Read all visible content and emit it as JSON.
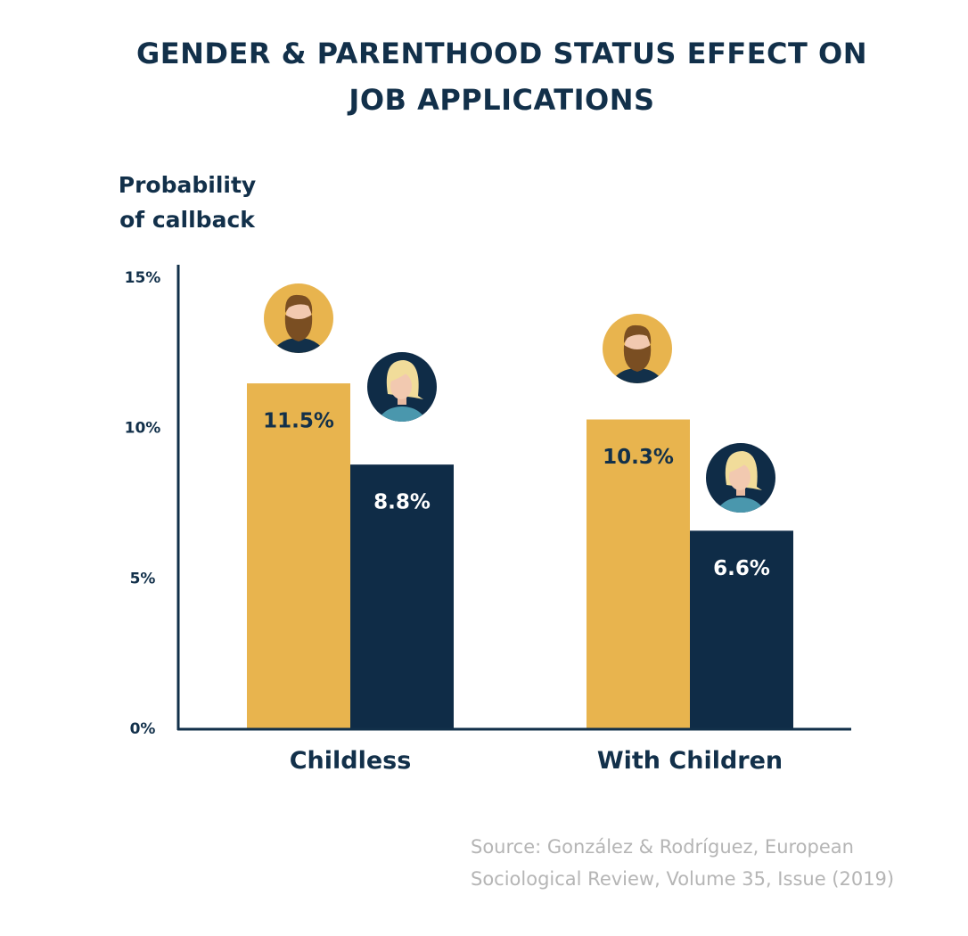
{
  "chart_data": {
    "type": "bar",
    "title_lines": [
      "GENDER & PARENTHOOD STATUS EFFECT ON",
      "JOB APPLICATIONS"
    ],
    "ylabel_lines": [
      "Probability",
      "of callback"
    ],
    "categories": [
      "Childless",
      "With Children"
    ],
    "series": [
      {
        "name": "Men",
        "values": [
          11.5,
          10.3
        ],
        "color": "#e8b44e",
        "label_color": "#12304a",
        "icon": "man-avatar-icon"
      },
      {
        "name": "Women",
        "values": [
          8.8,
          6.6
        ],
        "color": "#0f2c47",
        "label_color": "#ffffff",
        "icon": "woman-avatar-icon"
      }
    ],
    "data_labels": [
      [
        "11.5%",
        "10.3%"
      ],
      [
        "8.8%",
        "6.6%"
      ]
    ],
    "y_ticks": [
      0,
      5,
      10,
      15
    ],
    "y_tick_labels": [
      "0%",
      "5%",
      "10%",
      "15%"
    ],
    "ylim": [
      0,
      15
    ],
    "grid": false,
    "legend": "none"
  },
  "source_lines": [
    "Source: González & Rodríguez, European",
    "Sociological Review, Volume 35, Issue (2019)"
  ],
  "colors": {
    "navy": "#12304a",
    "gold": "#e8b44e",
    "source_gray": "#b5b5b5"
  }
}
